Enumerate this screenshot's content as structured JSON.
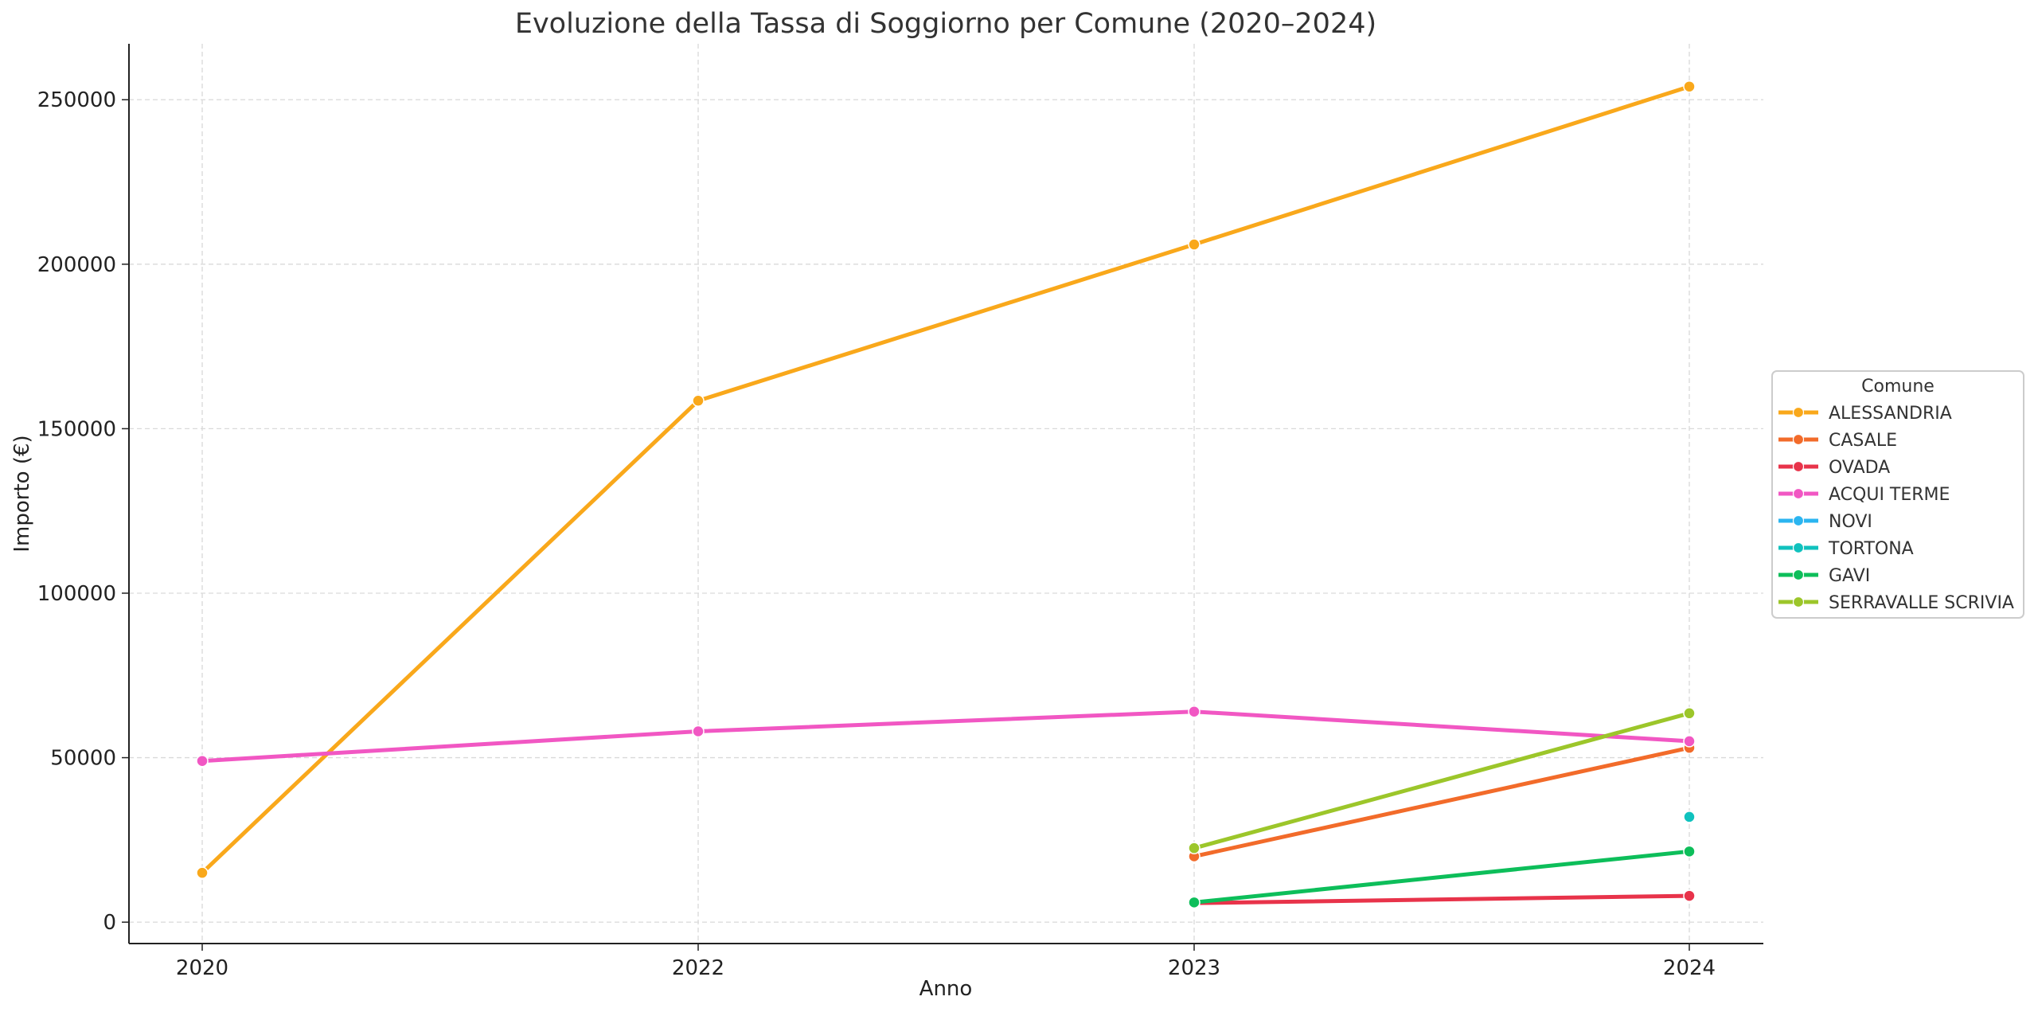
{
  "chart_data": {
    "type": "line",
    "title": "Evoluzione della Tassa di Soggiorno per Comune (2020–2024)",
    "xlabel": "Anno",
    "ylabel": "Importo (€)",
    "categories": [
      "2020",
      "2022",
      "2023",
      "2024"
    ],
    "ylim": [
      -6500,
      267000
    ],
    "yticks": [
      0,
      50000,
      100000,
      150000,
      200000,
      250000
    ],
    "grid": true,
    "legend": {
      "title": "Comune",
      "placement": "center-right, outside plot"
    },
    "series": [
      {
        "name": "ALESSANDRIA",
        "color": "#F9A81B",
        "values": [
          15000,
          158500,
          206000,
          254000
        ]
      },
      {
        "name": "CASALE",
        "color": "#F26B2A",
        "values": [
          null,
          null,
          20000,
          53000
        ]
      },
      {
        "name": "OVADA",
        "color": "#E8334A",
        "values": [
          null,
          null,
          5800,
          8000
        ]
      },
      {
        "name": "ACQUI TERME",
        "color": "#F157C3",
        "values": [
          49000,
          58000,
          64000,
          55000
        ]
      },
      {
        "name": "NOVI",
        "color": "#2BB5F0",
        "values": [
          null,
          null,
          null,
          null
        ]
      },
      {
        "name": "TORTONA",
        "color": "#10C2BE",
        "values": [
          null,
          null,
          null,
          32000
        ]
      },
      {
        "name": "GAVI",
        "color": "#0DBE5A",
        "values": [
          null,
          null,
          6000,
          21500
        ]
      },
      {
        "name": "SERRAVALLE SCRIVIA",
        "color": "#9CC62A",
        "values": [
          null,
          null,
          22500,
          63500
        ]
      }
    ]
  }
}
